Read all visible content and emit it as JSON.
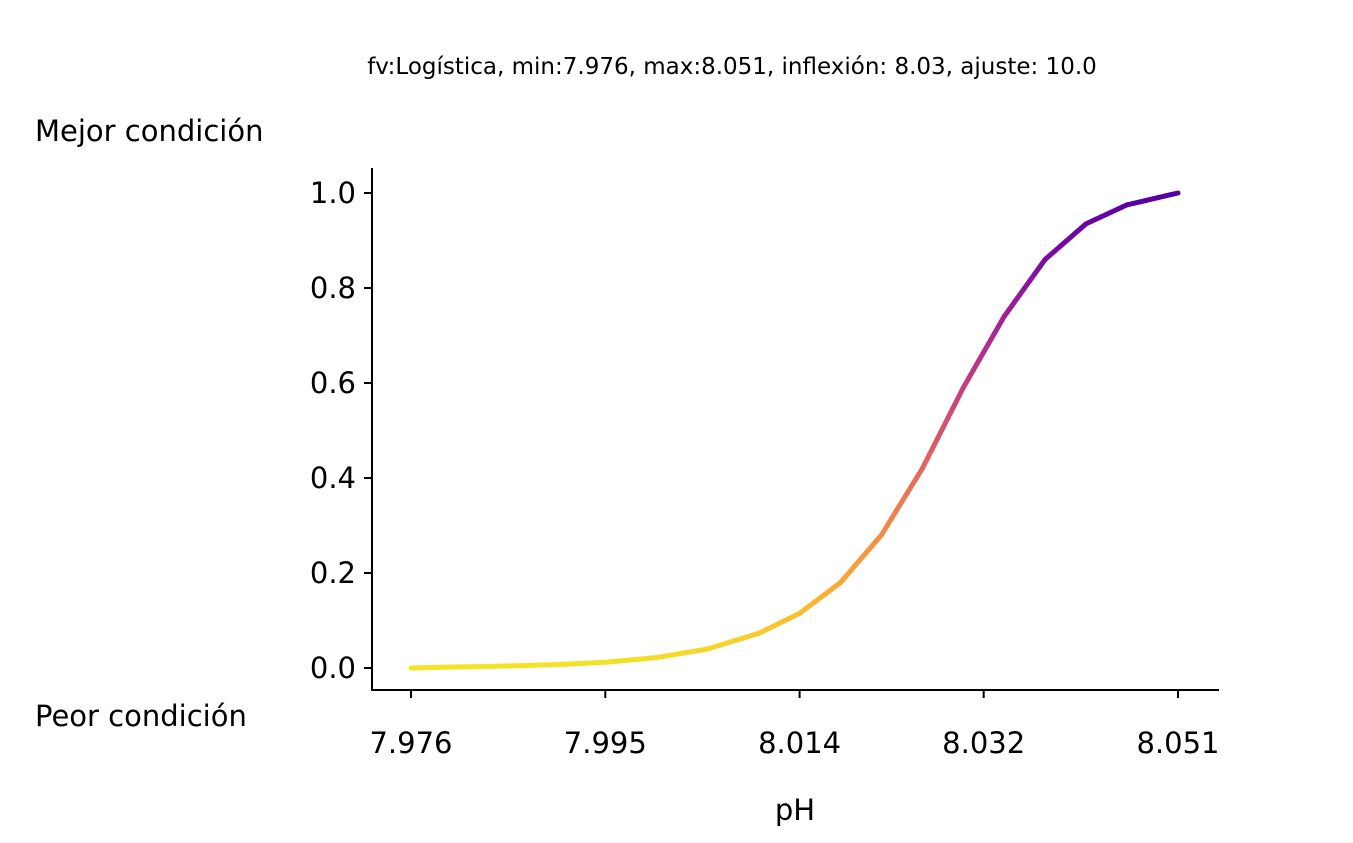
{
  "chart_data": {
    "type": "line",
    "title": "fv:Logística, min:7.976, max:8.051, inflexión: 8.03, ajuste: 10.0",
    "xlabel": "pH",
    "ylabel": "",
    "annotations": {
      "top": "Mejor condición",
      "bottom": "Peor condición"
    },
    "x_ticks": [
      "7.976",
      "7.995",
      "8.014",
      "8.032",
      "8.051"
    ],
    "y_ticks": [
      "0.0",
      "0.2",
      "0.4",
      "0.6",
      "0.8",
      "1.0"
    ],
    "xlim": [
      7.976,
      8.051
    ],
    "ylim": [
      0.0,
      1.0
    ],
    "grid": false,
    "colormap": [
      "#0d0887",
      "#6a00a8",
      "#b12a90",
      "#e16462",
      "#fca636",
      "#f0f921"
    ],
    "series": [
      {
        "x": [
          7.976,
          7.98,
          7.985,
          7.99,
          7.995,
          8.0,
          8.005,
          8.01,
          8.014,
          8.018,
          8.022,
          8.026,
          8.03,
          8.034,
          8.038,
          8.042,
          8.046,
          8.051
        ],
        "y": [
          0.0,
          0.002,
          0.004,
          0.007,
          0.012,
          0.022,
          0.04,
          0.073,
          0.115,
          0.18,
          0.28,
          0.42,
          0.59,
          0.74,
          0.86,
          0.935,
          0.975,
          1.0
        ]
      }
    ]
  }
}
